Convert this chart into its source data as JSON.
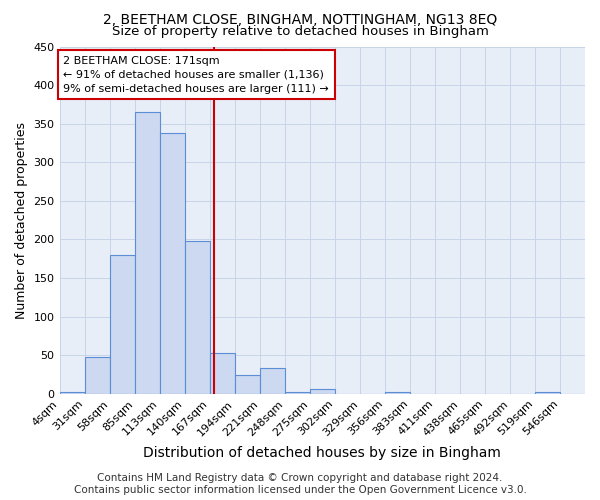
{
  "title": "2, BEETHAM CLOSE, BINGHAM, NOTTINGHAM, NG13 8EQ",
  "subtitle": "Size of property relative to detached houses in Bingham",
  "xlabel": "Distribution of detached houses by size in Bingham",
  "ylabel": "Number of detached properties",
  "footer_line1": "Contains HM Land Registry data © Crown copyright and database right 2024.",
  "footer_line2": "Contains public sector information licensed under the Open Government Licence v3.0.",
  "bin_edges": [
    4,
    31,
    58,
    85,
    112,
    139,
    166,
    193,
    220,
    247,
    274,
    301,
    328,
    355,
    382,
    409,
    436,
    463,
    490,
    517,
    544,
    571
  ],
  "bin_labels": [
    "4sqm",
    "31sqm",
    "58sqm",
    "85sqm",
    "113sqm",
    "140sqm",
    "167sqm",
    "194sqm",
    "221sqm",
    "248sqm",
    "275sqm",
    "302sqm",
    "329sqm",
    "356sqm",
    "383sqm",
    "411sqm",
    "438sqm",
    "465sqm",
    "492sqm",
    "519sqm",
    "546sqm"
  ],
  "counts": [
    2,
    48,
    180,
    365,
    338,
    198,
    53,
    25,
    33,
    3,
    6,
    0,
    0,
    2,
    0,
    0,
    0,
    0,
    0,
    3,
    0
  ],
  "bar_facecolor": "#ccd9f0",
  "bar_edgecolor": "#5b8ed6",
  "grid_color": "#c8d4e8",
  "background_color": "#e8eef8",
  "vline_x": 171,
  "vline_color": "#cc0000",
  "annotation_text_line1": "2 BEETHAM CLOSE: 171sqm",
  "annotation_text_line2": "← 91% of detached houses are smaller (1,136)",
  "annotation_text_line3": "9% of semi-detached houses are larger (111) →",
  "annotation_box_edgecolor": "#cc0000",
  "ylim": [
    0,
    450
  ],
  "yticks": [
    0,
    50,
    100,
    150,
    200,
    250,
    300,
    350,
    400,
    450
  ],
  "title_fontsize": 10,
  "subtitle_fontsize": 9.5,
  "axis_label_fontsize": 9,
  "tick_fontsize": 8,
  "footer_fontsize": 7.5
}
